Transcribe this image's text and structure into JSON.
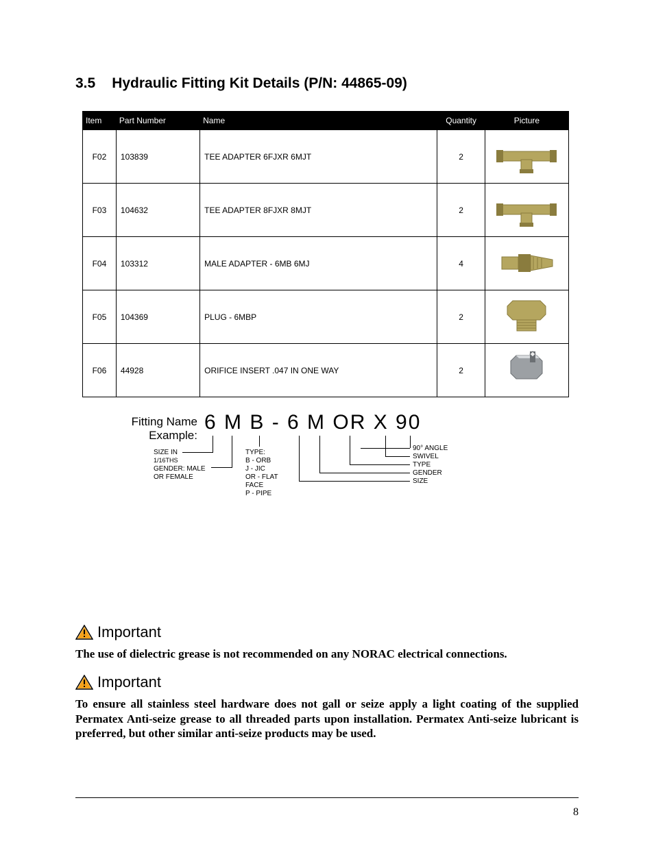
{
  "section": {
    "number": "3.5",
    "title": "Hydraulic Fitting Kit Details (P/N: 44865-09)"
  },
  "table": {
    "headers": {
      "item": "Item",
      "pn": "Part Number",
      "name": "Name",
      "qty": "Quantity",
      "pic": "Picture"
    },
    "rows": [
      {
        "item": "F02",
        "pn": "103839",
        "name": "TEE ADAPTER 6FJXR 6MJT",
        "qty": "2",
        "pic_type": "tee"
      },
      {
        "item": "F03",
        "pn": "104632",
        "name": "TEE ADAPTER 8FJXR 8MJT",
        "qty": "2",
        "pic_type": "tee"
      },
      {
        "item": "F04",
        "pn": "103312",
        "name": "MALE ADAPTER -  6MB 6MJ",
        "qty": "4",
        "pic_type": "adapter"
      },
      {
        "item": "F05",
        "pn": "104369",
        "name": "PLUG - 6MBP",
        "qty": "2",
        "pic_type": "plug"
      },
      {
        "item": "F06",
        "pn": "44928",
        "name": "ORIFICE INSERT .047 IN ONE WAY",
        "qty": "2",
        "pic_type": "orifice"
      }
    ]
  },
  "fitting_name": {
    "label_line1": "Fitting Name",
    "label_line2": "Example:",
    "code": "6 M B - 6 M OR X 90",
    "left": {
      "size": "SIZE IN",
      "size_unit": "1/16THS",
      "gender": "GENDER: MALE",
      "gender2": "OR FEMALE",
      "type_label": "TYPE:",
      "type_lines": [
        "B - ORB",
        "J - JIC",
        "OR - FLAT",
        "FACE",
        "P - PIPE"
      ]
    },
    "right": {
      "angle": "90° ANGLE",
      "swivel": "SWIVEL",
      "type": "TYPE",
      "gender": "GENDER",
      "size": "SIZE"
    }
  },
  "notices": {
    "important_label": "Important",
    "n1": "The use of dielectric grease is not recommended on any NORAC electrical connections.",
    "n2": "To ensure all stainless steel hardware does not gall or seize apply a light coating of the supplied Permatex Anti-seize grease to all threaded parts upon installation. Permatex Anti-seize lubricant is preferred, but other similar anti-seize products may be used."
  },
  "page_number": "8",
  "colors": {
    "brass": "#b5a65f",
    "brass_dark": "#8a7c3e",
    "grey": "#9ca0a4",
    "grey_dark": "#6b6f73",
    "warn_border": "#000000",
    "warn_fill": "#f6a21b"
  }
}
